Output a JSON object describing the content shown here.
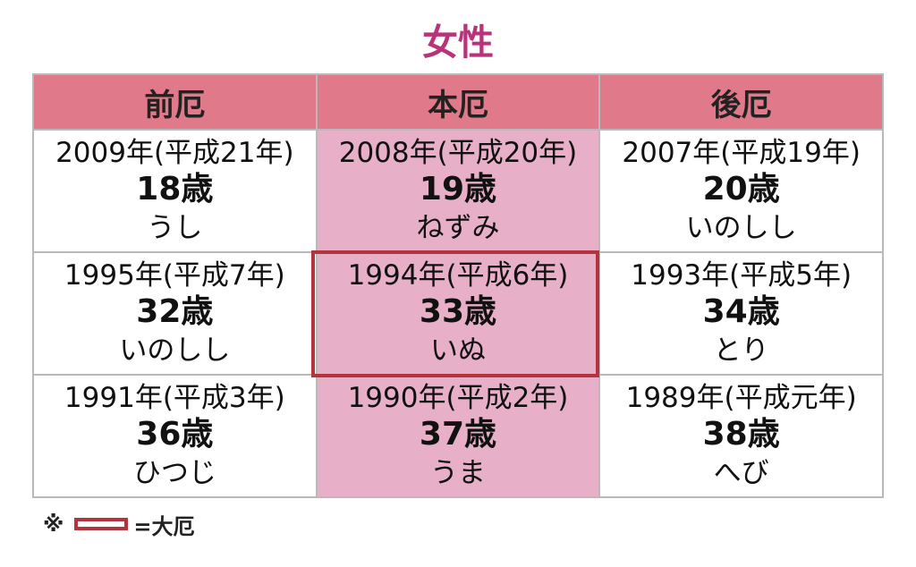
{
  "title": "女性",
  "colors": {
    "title": "#b8337a",
    "header_bg": "#e07a8a",
    "honyaku_bg": "#e8b0c8",
    "taiyaku_border": "#b3343c"
  },
  "columns": [
    "前厄",
    "本厄",
    "後厄"
  ],
  "rows": [
    [
      {
        "year": "2009年(平成21年)",
        "age": "18歳",
        "zodiac": "うし"
      },
      {
        "year": "2008年(平成20年)",
        "age": "19歳",
        "zodiac": "ねずみ"
      },
      {
        "year": "2007年(平成19年)",
        "age": "20歳",
        "zodiac": "いのしし"
      }
    ],
    [
      {
        "year": "1995年(平成7年)",
        "age": "32歳",
        "zodiac": "いのしし"
      },
      {
        "year": "1994年(平成6年)",
        "age": "33歳",
        "zodiac": "いぬ"
      },
      {
        "year": "1993年(平成5年)",
        "age": "34歳",
        "zodiac": "とり"
      }
    ],
    [
      {
        "year": "1991年(平成3年)",
        "age": "36歳",
        "zodiac": "ひつじ"
      },
      {
        "year": "1990年(平成2年)",
        "age": "37歳",
        "zodiac": "うま"
      },
      {
        "year": "1989年(平成元年)",
        "age": "38歳",
        "zodiac": "へび"
      }
    ]
  ],
  "legend": {
    "mark": "※",
    "label": "=大厄"
  }
}
